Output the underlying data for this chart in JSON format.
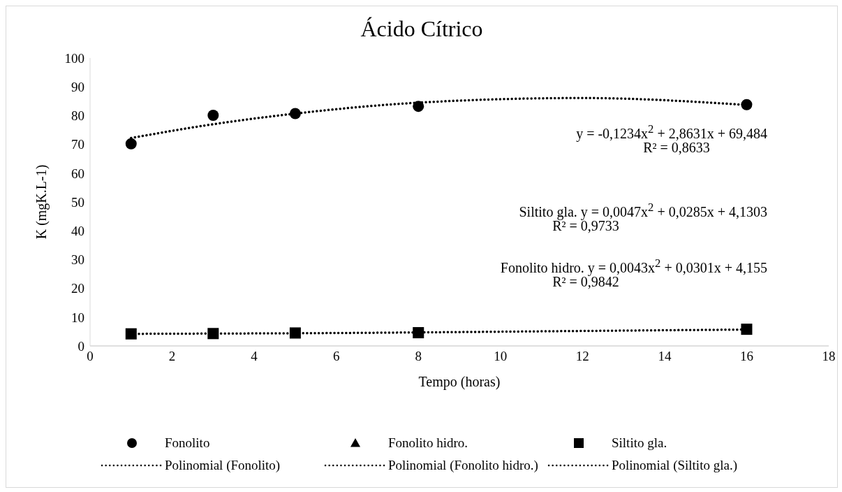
{
  "chart_data": {
    "type": "scatter",
    "title": "Ácido Cítrico",
    "xlabel": "Tempo (horas)",
    "ylabel": "K (mgK.L-1)",
    "xlim": [
      0,
      18
    ],
    "xticks": [
      0,
      2,
      4,
      6,
      8,
      10,
      12,
      14,
      16,
      18
    ],
    "ylim": [
      0,
      100
    ],
    "yticks": [
      0,
      10,
      20,
      30,
      40,
      50,
      60,
      70,
      80,
      90,
      100
    ],
    "grid": false,
    "legend": "bottom",
    "annotations": [
      "y = -0,1234x$^{2}$ + 2,8631x + 69,484",
      "R² = 0,8633",
      "Siltito gla. y = 0,0047x$^{2}$ + 0,0285x + 4,1303",
      "R² = 0,9733",
      "Fonolito hidro. y = 0,0043x$^{2}$ + 0,0301x + 4,155",
      "R² = 0,9842"
    ],
    "x": [
      1,
      3,
      5,
      8,
      16
    ],
    "series": [
      {
        "name": "Fonolito",
        "color": "#000000",
        "marker": "circle",
        "values": [
          70.2,
          80.1,
          80.7,
          83.2,
          83.8
        ]
      },
      {
        "name": "Fonolito hidro.",
        "color": "#000000",
        "marker": "triangle",
        "values": [
          null,
          null,
          null,
          null,
          null
        ]
      },
      {
        "name": "Siltito gla.",
        "color": "#000000",
        "marker": "square",
        "values": [
          4.2,
          4.3,
          4.5,
          4.6,
          5.8
        ]
      },
      {
        "name": "Polinomial (Fonolito)",
        "type": "line",
        "color": "#000000",
        "marker": "none",
        "line_style": "dotted",
        "x": [
          1,
          3,
          5,
          8,
          12,
          16
        ],
        "values": [
          72.2,
          77.0,
          80.7,
          84.5,
          86.1,
          83.7
        ]
      },
      {
        "name": "Polinomial (Fonolito hidro.)",
        "type": "line",
        "color": "#000000",
        "marker": "none",
        "line_style": "dotted",
        "values": [
          null,
          null,
          null,
          null,
          null
        ]
      },
      {
        "name": "Polinomial (Siltito gla.)",
        "type": "line",
        "color": "#000000",
        "marker": "none",
        "line_style": "dotted",
        "x": [
          1,
          3,
          5,
          8,
          12,
          16
        ],
        "values": [
          4.2,
          4.3,
          4.4,
          4.7,
          5.2,
          5.7
        ]
      }
    ]
  }
}
